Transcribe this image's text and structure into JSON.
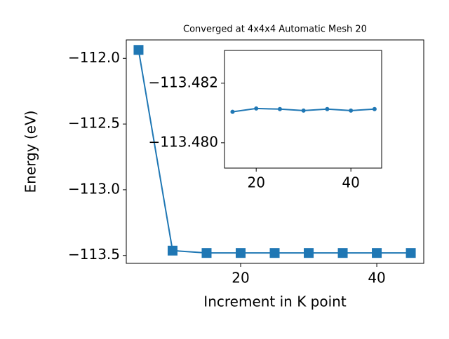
{
  "chart_data": [
    {
      "type": "line",
      "title": "Converged at 4x4x4 Automatic Mesh 20",
      "x_label": "Increment in K point",
      "y_label": "Energy (eV)",
      "x": [
        5,
        10,
        15,
        20,
        25,
        30,
        35,
        40,
        45
      ],
      "values": [
        -111.936,
        -113.463,
        -113.481,
        -113.481,
        -113.481,
        -113.481,
        -113.481,
        -113.481,
        -113.481
      ],
      "color": "#1f77b4",
      "marker": "square",
      "xlim": [
        3.2,
        46.9
      ],
      "xticks": [
        20,
        40
      ],
      "ylim": [
        -113.56,
        -111.86
      ],
      "yticks": [
        {
          "value": -113.5,
          "label": "−113.5"
        },
        {
          "value": -113.0,
          "label": "−113.0"
        },
        {
          "value": -112.5,
          "label": "−112.5"
        },
        {
          "value": -112.0,
          "label": "−112.0"
        }
      ]
    },
    {
      "type": "line",
      "x": [
        15,
        20,
        25,
        30,
        35,
        40,
        45
      ],
      "values": [
        -113.48104,
        -113.48115,
        -113.48113,
        -113.48108,
        -113.48113,
        -113.48108,
        -113.48113
      ],
      "color": "#1f77b4",
      "marker": "circle",
      "xlim": [
        13.3,
        46.5
      ],
      "xticks": [
        20,
        40
      ],
      "ylim": [
        -113.47915,
        -113.4831
      ],
      "yticks": [
        {
          "value": -113.48,
          "label": "−113.480"
        },
        {
          "value": -113.482,
          "label": "−113.482"
        }
      ]
    }
  ]
}
